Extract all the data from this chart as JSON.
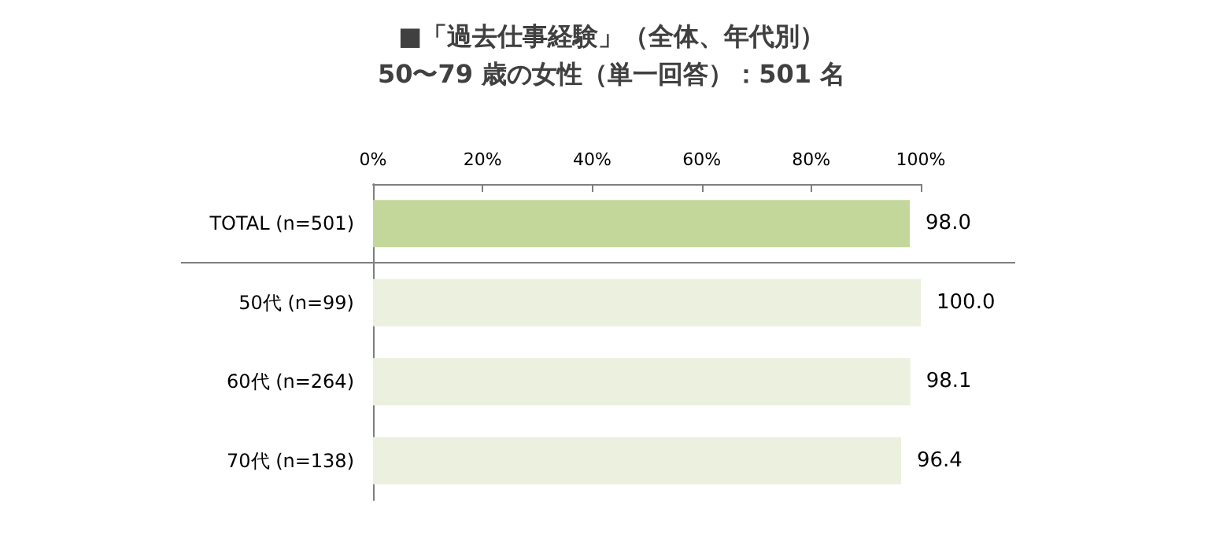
{
  "chart_data": {
    "type": "bar",
    "orientation": "horizontal",
    "title": "■「過去仕事経験」（全体、年代別）",
    "subtitle": "50〜79 歳の女性（単一回答）：501 名",
    "categories": [
      "TOTAL (n=501)",
      "50代 (n=99)",
      "60代 (n=264)",
      "70代 (n=138)"
    ],
    "values": [
      98.0,
      100.0,
      98.1,
      96.4
    ],
    "value_labels": [
      "98.0",
      "100.0",
      "98.1",
      "96.4"
    ],
    "colors": [
      "#c4d79b",
      "#ebf1de",
      "#ebf1de",
      "#ebf1de"
    ],
    "xlim": [
      0,
      100
    ],
    "xticks": [
      {
        "value": 0,
        "label": "0%"
      },
      {
        "value": 20,
        "label": "20%"
      },
      {
        "value": 40,
        "label": "40%"
      },
      {
        "value": 60,
        "label": "60%"
      },
      {
        "value": 80,
        "label": "80%"
      },
      {
        "value": 100,
        "label": "100%"
      }
    ]
  }
}
